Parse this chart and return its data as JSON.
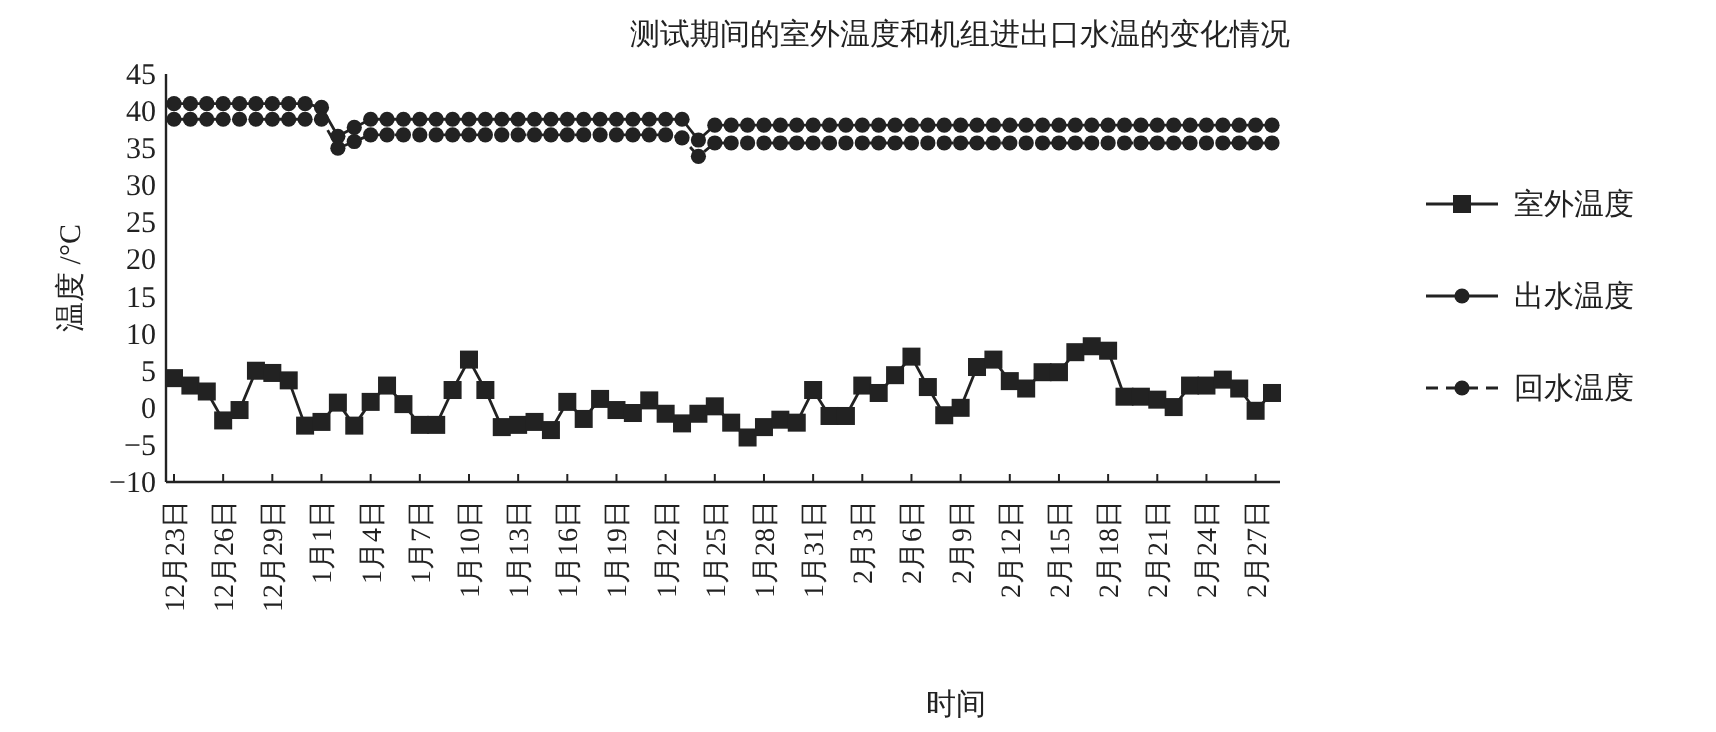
{
  "chart_data": {
    "type": "line",
    "title": "测试期间的室外温度和机组进出口水温的变化情况",
    "xlabel": "时间",
    "ylabel": "温度 /°C",
    "categories": [
      "12月23日",
      null,
      null,
      "12月26日",
      null,
      null,
      "12月29日",
      null,
      null,
      "1月1日",
      null,
      null,
      "1月4日",
      null,
      null,
      "1月7日",
      null,
      null,
      "1月10日",
      null,
      null,
      "1月13日",
      null,
      null,
      "1月16日",
      null,
      null,
      "1月19日",
      null,
      null,
      "1月22日",
      null,
      null,
      "1月25日",
      null,
      null,
      "1月28日",
      null,
      null,
      "1月31日",
      null,
      null,
      "2月3日",
      null,
      null,
      "2月6日",
      null,
      null,
      "2月9日",
      null,
      null,
      "2月12日",
      null,
      null,
      "2月15日",
      null,
      null,
      "2月18日",
      null,
      null,
      "2月21日",
      null,
      null,
      "2月24日",
      null,
      null,
      "2月27日",
      null
    ],
    "ylim": [
      -10,
      45
    ],
    "yticks": [
      -10,
      -5,
      0,
      5,
      10,
      15,
      20,
      25,
      30,
      35,
      40,
      45
    ],
    "legend": "right",
    "grid": false,
    "series": [
      {
        "name": "室外温度",
        "color": "#222222",
        "marker": "square",
        "line_style": "solid",
        "values": [
          4.0,
          3.0,
          2.2,
          -1.7,
          -0.3,
          5.0,
          4.7,
          3.7,
          -2.4,
          -1.9,
          0.7,
          -2.4,
          0.8,
          3.0,
          0.5,
          -2.3,
          -2.3,
          2.4,
          6.5,
          2.4,
          -2.6,
          -2.3,
          -1.9,
          -3.0,
          0.8,
          -1.5,
          1.2,
          -0.3,
          -0.7,
          1.0,
          -0.8,
          -2.1,
          -0.8,
          0.2,
          -2.0,
          -4.0,
          -2.6,
          -1.6,
          -2.0,
          2.4,
          -1.1,
          -1.1,
          3.0,
          2.0,
          4.4,
          6.9,
          2.8,
          -1.0,
          0.0,
          5.5,
          6.5,
          3.6,
          2.6,
          4.8,
          4.8,
          7.5,
          8.3,
          7.7,
          1.5,
          1.5,
          1.1,
          0.1,
          3.0,
          3.0,
          3.8,
          2.6,
          -0.4,
          2.0
        ]
      },
      {
        "name": "出水温度",
        "color": "#222222",
        "marker": "circle",
        "line_style": "solid",
        "values": [
          41.0,
          41.0,
          41.0,
          41.0,
          41.0,
          41.0,
          41.0,
          41.0,
          41.0,
          40.5,
          36.6,
          37.8,
          38.9,
          38.9,
          38.9,
          38.9,
          38.9,
          38.9,
          38.9,
          38.9,
          38.9,
          38.9,
          38.9,
          38.9,
          38.9,
          38.9,
          38.9,
          38.9,
          38.9,
          38.9,
          38.9,
          38.9,
          36.1,
          38.1,
          38.1,
          38.1,
          38.1,
          38.1,
          38.1,
          38.1,
          38.1,
          38.1,
          38.1,
          38.1,
          38.1,
          38.1,
          38.1,
          38.1,
          38.1,
          38.1,
          38.1,
          38.1,
          38.1,
          38.1,
          38.1,
          38.1,
          38.1,
          38.1,
          38.1,
          38.1,
          38.1,
          38.1,
          38.1,
          38.1,
          38.1,
          38.1,
          38.1,
          38.1
        ]
      },
      {
        "name": "回水温度",
        "color": "#222222",
        "marker": "circle",
        "line_style": "dashed",
        "values": [
          38.9,
          38.9,
          38.9,
          38.9,
          38.9,
          38.9,
          38.9,
          38.9,
          38.9,
          38.9,
          35.0,
          35.9,
          36.8,
          36.8,
          36.8,
          36.8,
          36.8,
          36.8,
          36.8,
          36.8,
          36.8,
          36.8,
          36.8,
          36.8,
          36.8,
          36.8,
          36.8,
          36.8,
          36.8,
          36.8,
          36.8,
          36.4,
          33.9,
          35.7,
          35.7,
          35.7,
          35.7,
          35.7,
          35.7,
          35.7,
          35.7,
          35.7,
          35.7,
          35.7,
          35.7,
          35.7,
          35.7,
          35.7,
          35.7,
          35.7,
          35.7,
          35.7,
          35.7,
          35.7,
          35.7,
          35.7,
          35.7,
          35.7,
          35.7,
          35.7,
          35.7,
          35.7,
          35.7,
          35.7,
          35.7,
          35.7,
          35.7,
          35.7
        ]
      }
    ]
  }
}
